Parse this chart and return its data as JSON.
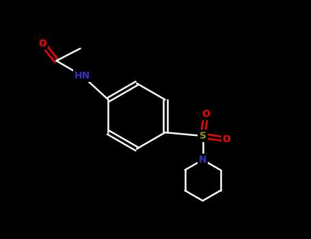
{
  "background_color": "#000000",
  "atom_colors": {
    "O": "#ff0000",
    "N": "#3333bb",
    "S": "#999900",
    "C": "#ffffff",
    "H": "#ffffff"
  },
  "bond_color": "#ffffff",
  "figsize": [
    4.55,
    3.5
  ],
  "dpi": 100,
  "lw": 1.8,
  "fontsize": 10
}
